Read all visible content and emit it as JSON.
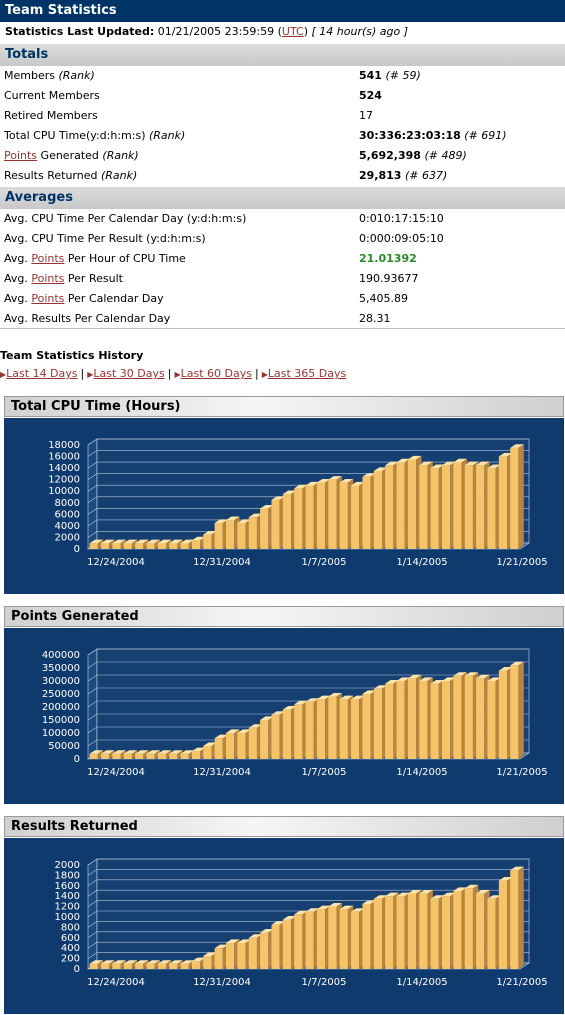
{
  "header": {
    "title": "Team Statistics"
  },
  "updated": {
    "label": "Statistics Last Updated:",
    "date": "01/21/2005 23:59:59",
    "open_paren": "(",
    "tz": "UTC",
    "close_paren": ")",
    "ago": "[ 14 hour(s) ago ]"
  },
  "totals": {
    "title": "Totals",
    "members_label": "Members",
    "members_rank_label": "(Rank)",
    "members_value": "541",
    "members_rank": "(# 59)",
    "current_label": "Current Members",
    "current_value": "524",
    "retired_label": "Retired Members",
    "retired_value": "17",
    "cpu_label": "Total CPU Time(y:d:h:m:s)",
    "cpu_rank_label": "(Rank)",
    "cpu_value": "30:336:23:03:18",
    "cpu_rank": "(# 691)",
    "points_link": "Points",
    "points_label": "Generated",
    "points_rank_label": "(Rank)",
    "points_value": "5,692,398",
    "points_rank": "(# 489)",
    "results_label": "Results Returned",
    "results_rank_label": "(Rank)",
    "results_value": "29,813",
    "results_rank": "(# 637)"
  },
  "averages": {
    "title": "Averages",
    "cpu_day_label": "Avg. CPU Time Per Calendar Day (y:d:h:m:s)",
    "cpu_day_value": "0:010:17:15:10",
    "cpu_result_label": "Avg. CPU Time Per Result (y:d:h:m:s)",
    "cpu_result_value": "0:000:09:05:10",
    "pph_prefix": "Avg.",
    "pph_link": "Points",
    "pph_suffix": "Per Hour of CPU Time",
    "pph_value": "21.01392",
    "ppr_prefix": "Avg.",
    "ppr_link": "Points",
    "ppr_suffix": "Per Result",
    "ppr_value": "190.93677",
    "ppd_prefix": "Avg.",
    "ppd_link": "Points",
    "ppd_suffix": "Per Calendar Day",
    "ppd_value": "5,405.89",
    "rpd_label": "Avg. Results Per Calendar Day",
    "rpd_value": "28.31"
  },
  "history": {
    "title": "Team Statistics History",
    "links": [
      "Last 14 Days",
      "Last 30 Days",
      "Last 60 Days",
      "Last 365 Days"
    ],
    "separator": "|"
  },
  "colors": {
    "header_bg": "#003366",
    "chart_bg": "#0e3a6e",
    "bar": "#f5c46a",
    "link": "#993333",
    "highlight": "#2a8a2a"
  },
  "chart_data": [
    {
      "type": "bar",
      "title": "Total CPU Time (Hours)",
      "x_ticks": [
        "12/24/2004",
        "12/31/2004",
        "1/7/2005",
        "1/14/2005",
        "1/21/2005"
      ],
      "y_ticks": [
        0,
        2000,
        4000,
        6000,
        8000,
        10000,
        12000,
        14000,
        16000,
        18000
      ],
      "ylim": [
        0,
        18000
      ],
      "values": [
        1000,
        1000,
        1000,
        1000,
        1000,
        1000,
        1000,
        1000,
        1000,
        1500,
        2500,
        4500,
        5000,
        4500,
        5500,
        7000,
        8500,
        9500,
        10500,
        11000,
        11500,
        12000,
        11500,
        11000,
        12500,
        13500,
        14500,
        15000,
        15500,
        14500,
        14000,
        14500,
        15000,
        14500,
        14500,
        14000,
        16000,
        17500
      ]
    },
    {
      "type": "bar",
      "title": "Points Generated",
      "x_ticks": [
        "12/24/2004",
        "12/31/2004",
        "1/7/2005",
        "1/14/2005",
        "1/21/2005"
      ],
      "y_ticks": [
        0,
        50000,
        100000,
        150000,
        200000,
        250000,
        300000,
        350000,
        400000
      ],
      "ylim": [
        0,
        400000
      ],
      "values": [
        20000,
        20000,
        20000,
        20000,
        20000,
        20000,
        20000,
        20000,
        20000,
        30000,
        50000,
        80000,
        100000,
        100000,
        120000,
        150000,
        170000,
        190000,
        210000,
        220000,
        230000,
        240000,
        230000,
        230000,
        250000,
        270000,
        290000,
        300000,
        310000,
        300000,
        290000,
        300000,
        320000,
        320000,
        310000,
        300000,
        340000,
        360000
      ]
    },
    {
      "type": "bar",
      "title": "Results Returned",
      "x_ticks": [
        "12/24/2004",
        "12/31/2004",
        "1/7/2005",
        "1/14/2005",
        "1/21/2005"
      ],
      "y_ticks": [
        0,
        200,
        400,
        600,
        800,
        1000,
        1200,
        1400,
        1600,
        1800,
        2000
      ],
      "ylim": [
        0,
        2000
      ],
      "values": [
        100,
        100,
        100,
        100,
        100,
        100,
        100,
        100,
        100,
        150,
        250,
        400,
        500,
        500,
        600,
        700,
        850,
        950,
        1050,
        1100,
        1150,
        1200,
        1150,
        1100,
        1250,
        1350,
        1400,
        1400,
        1450,
        1450,
        1350,
        1400,
        1500,
        1550,
        1450,
        1350,
        1700,
        1900
      ]
    }
  ]
}
